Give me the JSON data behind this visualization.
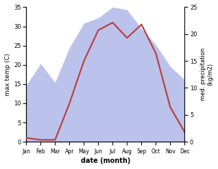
{
  "months": [
    "Jan",
    "Feb",
    "Mar",
    "Apr",
    "May",
    "Jun",
    "Jul",
    "Aug",
    "Sep",
    "Oct",
    "Nov",
    "Dec"
  ],
  "temp": [
    1.0,
    0.5,
    0.5,
    10.0,
    21.0,
    29.0,
    31.0,
    27.0,
    30.5,
    23.0,
    9.0,
    2.5
  ],
  "precip": [
    10.5,
    14.5,
    11.0,
    17.5,
    22.0,
    23.0,
    25.0,
    24.5,
    21.0,
    18.0,
    14.0,
    11.5
  ],
  "temp_color": "#b94040",
  "precip_fill_color": "#b0b8e8",
  "precip_fill_alpha": 0.85,
  "temp_ylim": [
    0,
    35
  ],
  "precip_ylim": [
    0,
    25
  ],
  "temp_yticks": [
    0,
    5,
    10,
    15,
    20,
    25,
    30,
    35
  ],
  "precip_yticks": [
    0,
    5,
    10,
    15,
    20,
    25
  ],
  "xlabel": "date (month)",
  "ylabel_left": "max temp (C)",
  "ylabel_right": "med. precipitation\n(kg/m2)",
  "background_color": "#ffffff",
  "linewidth": 1.6
}
